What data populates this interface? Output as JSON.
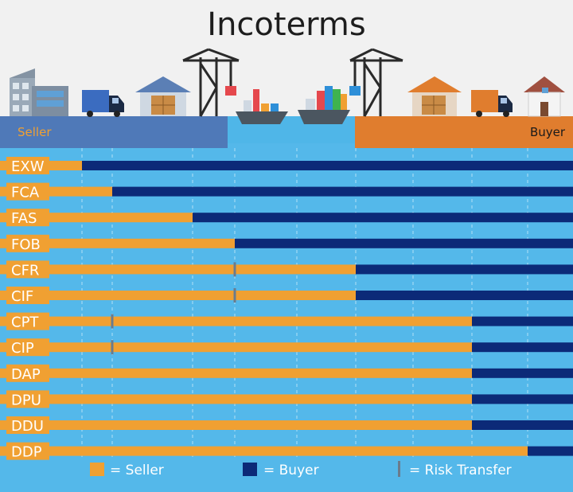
{
  "title": "Incoterms",
  "parties": {
    "seller": "Seller",
    "buyer": "Buyer"
  },
  "colors": {
    "seller": "#f0a032",
    "buyer": "#0c2a78",
    "risk": "#6b7b8c",
    "water": "#4fb6e8",
    "seller_panel": "#4f79b8",
    "buyer_panel": "#e07d2e",
    "sky": "#f1f1f1"
  },
  "stages": [
    "seller-premises",
    "export-truck",
    "export-warehouse",
    "origin-port",
    "ship-origin",
    "ship-destination",
    "destination-port",
    "import-warehouse",
    "import-truck",
    "buyer-premises"
  ],
  "icons": [
    "office-building-icon",
    "truck-icon",
    "warehouse-icon",
    "crane-icon",
    "cargo-ship-icon",
    "cargo-ship-icon",
    "crane-icon",
    "warehouse-icon",
    "truck-icon",
    "house-icon"
  ],
  "terms": [
    {
      "code": "EXW",
      "seller_until": 1,
      "risk_at": 1
    },
    {
      "code": "FCA",
      "seller_until": 2,
      "risk_at": 2
    },
    {
      "code": "FAS",
      "seller_until": 3,
      "risk_at": 3
    },
    {
      "code": "FOB",
      "seller_until": 4,
      "risk_at": 4
    },
    {
      "code": "CFR",
      "seller_until": 6,
      "risk_at": 4
    },
    {
      "code": "CIF",
      "seller_until": 6,
      "risk_at": 4
    },
    {
      "code": "CPT",
      "seller_until": 8,
      "risk_at": 2
    },
    {
      "code": "CIP",
      "seller_until": 8,
      "risk_at": 2
    },
    {
      "code": "DAP",
      "seller_until": 8,
      "risk_at": 8
    },
    {
      "code": "DPU",
      "seller_until": 8,
      "risk_at": 8
    },
    {
      "code": "DDU",
      "seller_until": 8,
      "risk_at": 8
    },
    {
      "code": "DDP",
      "seller_until": 9,
      "risk_at": 9
    }
  ],
  "legend": {
    "seller": "= Seller",
    "buyer": "= Buyer",
    "risk": "= Risk Transfer"
  }
}
